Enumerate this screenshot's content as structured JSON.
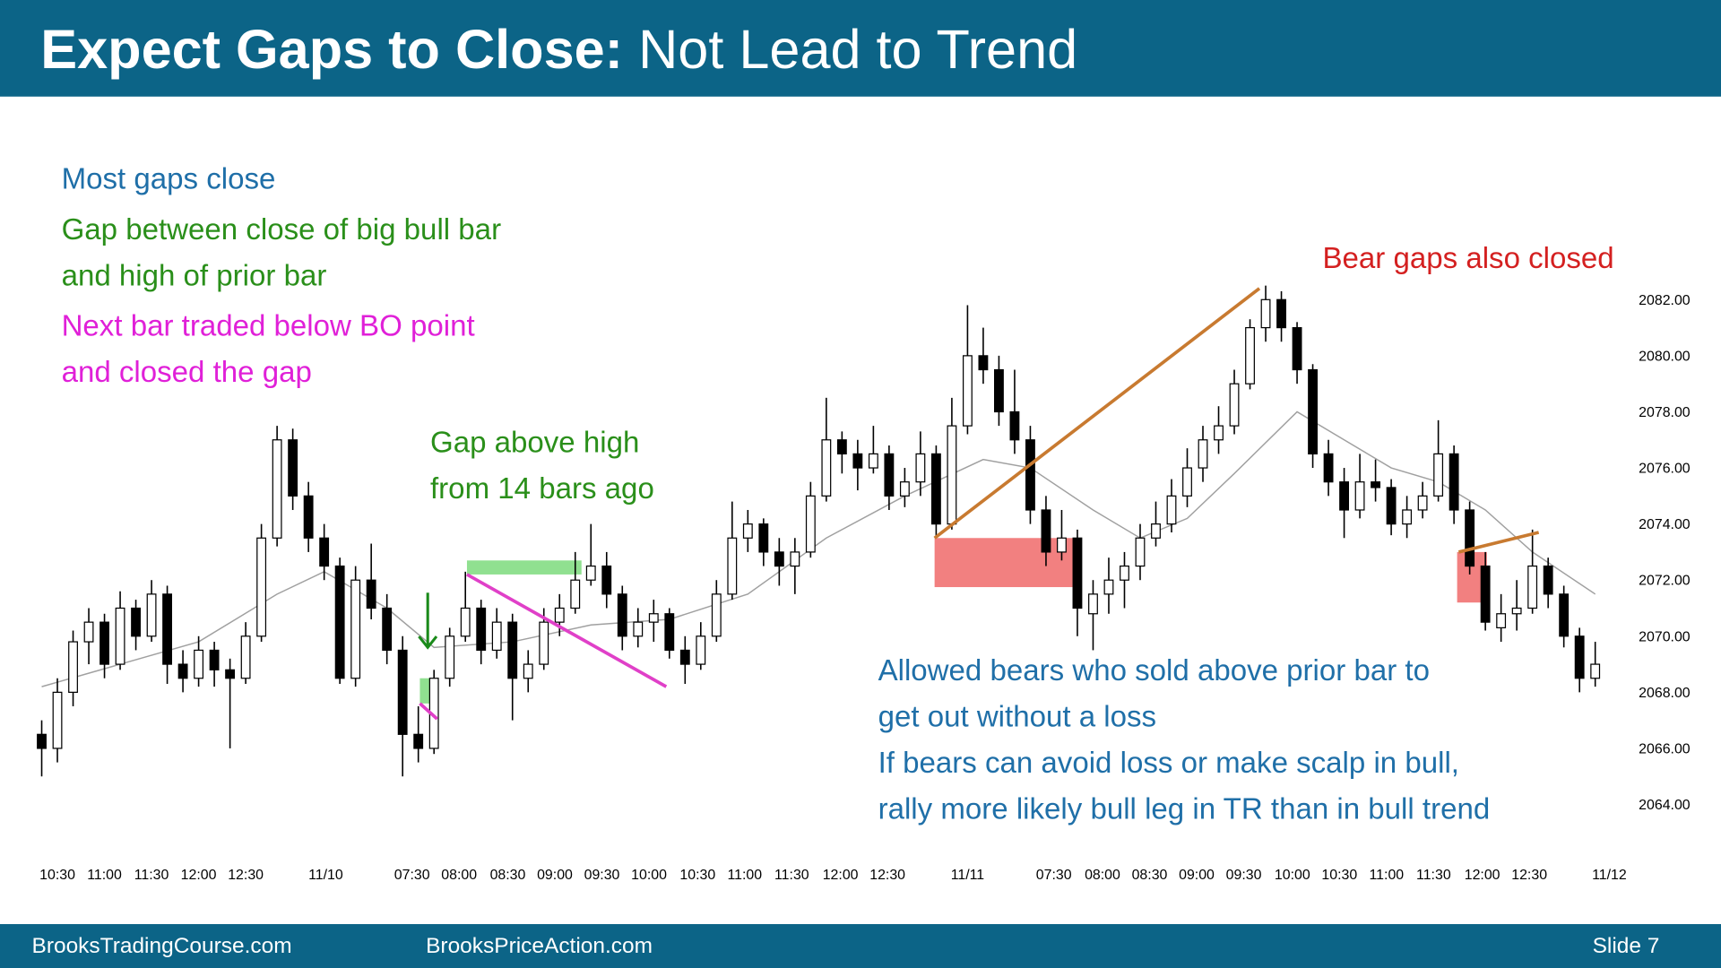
{
  "chart_data": {
    "type": "candlestick",
    "title": "Expect Gaps to Close:",
    "subtitle": "Not Lead to Trend",
    "xlim": [
      -1,
      101
    ],
    "ylim": [
      2062,
      2084
    ],
    "yticks": [
      {
        "value": 2064,
        "label": "2064.00"
      },
      {
        "value": 2066,
        "label": "2066.00"
      },
      {
        "value": 2068,
        "label": "2068.00"
      },
      {
        "value": 2070,
        "label": "2070.00"
      },
      {
        "value": 2072,
        "label": "2072.00"
      },
      {
        "value": 2074,
        "label": "2074.00"
      },
      {
        "value": 2076,
        "label": "2076.00"
      },
      {
        "value": 2078,
        "label": "2078.00"
      },
      {
        "value": 2080,
        "label": "2080.00"
      },
      {
        "value": 2082,
        "label": "2082.00"
      }
    ],
    "xticks": [
      {
        "value": 1,
        "label": "10:30"
      },
      {
        "value": 4,
        "label": "11:00"
      },
      {
        "value": 7,
        "label": "11:30"
      },
      {
        "value": 10,
        "label": "12:00"
      },
      {
        "value": 13,
        "label": "12:30"
      },
      {
        "value": 18.1,
        "label": "11/10"
      },
      {
        "value": 23.6,
        "label": "07:30"
      },
      {
        "value": 26.6,
        "label": "08:00"
      },
      {
        "value": 29.7,
        "label": "08:30"
      },
      {
        "value": 32.7,
        "label": "09:00"
      },
      {
        "value": 35.7,
        "label": "09:30"
      },
      {
        "value": 38.7,
        "label": "10:00"
      },
      {
        "value": 41.8,
        "label": "10:30"
      },
      {
        "value": 44.8,
        "label": "11:00"
      },
      {
        "value": 47.8,
        "label": "11:30"
      },
      {
        "value": 50.9,
        "label": "12:00"
      },
      {
        "value": 53.9,
        "label": "12:30"
      },
      {
        "value": 59,
        "label": "11/11"
      },
      {
        "value": 64.5,
        "label": "07:30"
      },
      {
        "value": 67.6,
        "label": "08:00"
      },
      {
        "value": 70.6,
        "label": "08:30"
      },
      {
        "value": 73.6,
        "label": "09:00"
      },
      {
        "value": 76.6,
        "label": "09:30"
      },
      {
        "value": 79.7,
        "label": "10:00"
      },
      {
        "value": 82.7,
        "label": "10:30"
      },
      {
        "value": 85.7,
        "label": "11:00"
      },
      {
        "value": 88.7,
        "label": "11:30"
      },
      {
        "value": 91.8,
        "label": "12:00"
      },
      {
        "value": 94.8,
        "label": "12:30"
      },
      {
        "value": 99.9,
        "label": "11/12"
      }
    ],
    "up_color": "#ffffff",
    "down_color": "#000000",
    "ohlc": [
      [
        2066.5,
        2067,
        2065,
        2066
      ],
      [
        2066,
        2068.5,
        2065.5,
        2068
      ],
      [
        2068,
        2070.2,
        2067.5,
        2069.8
      ],
      [
        2069.8,
        2071,
        2069,
        2070.5
      ],
      [
        2070.5,
        2070.8,
        2068.5,
        2069
      ],
      [
        2069,
        2071.6,
        2068.8,
        2071
      ],
      [
        2071,
        2071.3,
        2069.5,
        2070
      ],
      [
        2070,
        2072,
        2069.8,
        2071.5
      ],
      [
        2071.5,
        2071.8,
        2068.3,
        2069
      ],
      [
        2069,
        2069.5,
        2068,
        2068.5
      ],
      [
        2068.5,
        2070,
        2068.2,
        2069.5
      ],
      [
        2069.5,
        2069.8,
        2068.2,
        2068.8
      ],
      [
        2068.8,
        2069.2,
        2066,
        2068.5
      ],
      [
        2068.5,
        2070.5,
        2068.3,
        2070
      ],
      [
        2070,
        2074,
        2069.8,
        2073.5
      ],
      [
        2073.5,
        2077.5,
        2073.2,
        2077
      ],
      [
        2077,
        2077.4,
        2074.5,
        2075
      ],
      [
        2075,
        2075.5,
        2073,
        2073.5
      ],
      [
        2073.5,
        2074,
        2072,
        2072.5
      ],
      [
        2072.5,
        2072.8,
        2068.3,
        2068.5
      ],
      [
        2068.5,
        2072.5,
        2068.2,
        2072
      ],
      [
        2072,
        2073.3,
        2070.6,
        2071
      ],
      [
        2071,
        2071.5,
        2069,
        2069.5
      ],
      [
        2069.5,
        2070,
        2065,
        2066.5
      ],
      [
        2066.5,
        2067.5,
        2065.5,
        2066
      ],
      [
        2066,
        2068.8,
        2065.8,
        2068.5
      ],
      [
        2068.5,
        2070.3,
        2068.2,
        2070
      ],
      [
        2070,
        2072.3,
        2069.8,
        2071
      ],
      [
        2071,
        2071.3,
        2069,
        2069.5
      ],
      [
        2069.5,
        2071,
        2069.2,
        2070.5
      ],
      [
        2070.5,
        2070.8,
        2067,
        2068.5
      ],
      [
        2068.5,
        2069.5,
        2068,
        2069
      ],
      [
        2069,
        2071,
        2068.8,
        2070.5
      ],
      [
        2070.5,
        2071.5,
        2070,
        2071
      ],
      [
        2071,
        2073,
        2070.8,
        2072
      ],
      [
        2072,
        2074,
        2071.8,
        2072.5
      ],
      [
        2072.5,
        2073,
        2071,
        2071.5
      ],
      [
        2071.5,
        2071.8,
        2069.5,
        2070
      ],
      [
        2070,
        2071,
        2069.6,
        2070.5
      ],
      [
        2070.5,
        2071.3,
        2069.8,
        2070.8
      ],
      [
        2070.8,
        2071,
        2069.2,
        2069.5
      ],
      [
        2069.5,
        2070,
        2068.3,
        2069
      ],
      [
        2069,
        2070.5,
        2068.8,
        2070
      ],
      [
        2070,
        2072,
        2069.8,
        2071.5
      ],
      [
        2071.5,
        2074.8,
        2071.3,
        2073.5
      ],
      [
        2073.5,
        2074.5,
        2073,
        2074
      ],
      [
        2074,
        2074.2,
        2072.5,
        2073
      ],
      [
        2073,
        2073.5,
        2071.8,
        2072.5
      ],
      [
        2072.5,
        2073.5,
        2071.5,
        2073
      ],
      [
        2073,
        2075.5,
        2072.8,
        2075
      ],
      [
        2075,
        2078.5,
        2074.8,
        2077
      ],
      [
        2077,
        2077.3,
        2075.8,
        2076.5
      ],
      [
        2076.5,
        2077,
        2075.2,
        2076
      ],
      [
        2076,
        2077.5,
        2075.8,
        2076.5
      ],
      [
        2076.5,
        2076.8,
        2074.5,
        2075
      ],
      [
        2075,
        2076,
        2074.6,
        2075.5
      ],
      [
        2075.5,
        2077.3,
        2075,
        2076.5
      ],
      [
        2076.5,
        2076.8,
        2073.5,
        2074
      ],
      [
        2074,
        2078.5,
        2073.8,
        2077.5
      ],
      [
        2077.5,
        2081.8,
        2077.2,
        2080
      ],
      [
        2080,
        2081,
        2079,
        2079.5
      ],
      [
        2079.5,
        2080,
        2077.5,
        2078
      ],
      [
        2078,
        2079.5,
        2076.5,
        2077
      ],
      [
        2077,
        2077.5,
        2074,
        2074.5
      ],
      [
        2074.5,
        2075,
        2072.5,
        2073
      ],
      [
        2073,
        2074.5,
        2072.7,
        2073.5
      ],
      [
        2073.5,
        2073.8,
        2070,
        2071
      ],
      [
        2070.8,
        2072,
        2069.5,
        2071.5
      ],
      [
        2071.5,
        2072.8,
        2070.8,
        2072
      ],
      [
        2072,
        2073,
        2071,
        2072.5
      ],
      [
        2072.5,
        2074,
        2072,
        2073.5
      ],
      [
        2073.5,
        2074.8,
        2073.2,
        2074
      ],
      [
        2074,
        2075.6,
        2073.7,
        2075
      ],
      [
        2075,
        2076.7,
        2074.6,
        2076
      ],
      [
        2076,
        2077.5,
        2075.5,
        2077
      ],
      [
        2077,
        2078.2,
        2076.5,
        2077.5
      ],
      [
        2077.5,
        2079.5,
        2077.2,
        2079
      ],
      [
        2079,
        2081.3,
        2078.8,
        2081
      ],
      [
        2081,
        2082.5,
        2080.5,
        2082
      ],
      [
        2082,
        2082.3,
        2080.5,
        2081
      ],
      [
        2081,
        2081.2,
        2079,
        2079.5
      ],
      [
        2079.5,
        2079.7,
        2076,
        2076.5
      ],
      [
        2076.5,
        2077,
        2075,
        2075.5
      ],
      [
        2075.5,
        2076,
        2073.5,
        2074.5
      ],
      [
        2074.5,
        2076.5,
        2074.2,
        2075.5
      ],
      [
        2075.5,
        2076.3,
        2074.8,
        2075.3
      ],
      [
        2075.3,
        2075.6,
        2073.6,
        2074
      ],
      [
        2074,
        2075,
        2073.5,
        2074.5
      ],
      [
        2074.5,
        2075.5,
        2074.2,
        2075
      ],
      [
        2075,
        2077.7,
        2074.8,
        2076.5
      ],
      [
        2076.5,
        2076.8,
        2074,
        2074.5
      ],
      [
        2074.5,
        2074.8,
        2072.2,
        2072.5
      ],
      [
        2072.5,
        2073,
        2070.2,
        2070.5
      ],
      [
        2070.3,
        2071.5,
        2069.8,
        2070.8
      ],
      [
        2070.8,
        2072,
        2070.2,
        2071
      ],
      [
        2071,
        2073.8,
        2070.8,
        2072.5
      ],
      [
        2072.5,
        2072.8,
        2071,
        2071.5
      ],
      [
        2071.5,
        2071.8,
        2069.6,
        2070
      ],
      [
        2070,
        2070.3,
        2068,
        2068.5
      ],
      [
        2068.5,
        2069.8,
        2068.2,
        2069
      ]
    ],
    "moving_average": {
      "color": "#a0a0a0",
      "x": [
        0,
        5,
        10,
        15,
        18,
        22,
        25,
        30,
        35,
        40,
        45,
        50,
        55,
        60,
        63,
        67,
        70,
        73,
        76,
        80,
        83,
        86,
        89,
        92,
        95,
        99
      ],
      "values": [
        2068.2,
        2069,
        2069.8,
        2071.5,
        2072.3,
        2071,
        2069.6,
        2069.8,
        2070.4,
        2070.6,
        2071.5,
        2073.5,
        2075,
        2076.3,
        2076,
        2074.5,
        2073.5,
        2074.2,
        2075.8,
        2078,
        2077,
        2076,
        2075.5,
        2074.5,
        2073,
        2071.5
      ]
    },
    "highlights": [
      {
        "x": [
          27.1,
          34.4
        ],
        "y": [
          2072.2,
          2072.7
        ],
        "color": "#90e090"
      },
      {
        "x": [
          24.1,
          25
        ],
        "y": [
          2067.6,
          2068.5
        ],
        "color": "#90e090"
      },
      {
        "x": [
          56.9,
          65.7
        ],
        "y": [
          2071.75,
          2073.5
        ],
        "color": "#f28080"
      },
      {
        "x": [
          90.2,
          92.1
        ],
        "y": [
          2071.2,
          2073
        ],
        "color": "#f28080"
      }
    ],
    "trendlines": [
      {
        "x": [
          56.9,
          77.6
        ],
        "y": [
          2073.5,
          2082.4
        ],
        "color": "#c87a30"
      },
      {
        "x": [
          90.3,
          95.4
        ],
        "y": [
          2073,
          2073.7
        ],
        "color": "#c87a30"
      },
      {
        "x": [
          27.1,
          39.8
        ],
        "y": [
          2072.2,
          2068.2
        ],
        "color": "#e040c8"
      },
      {
        "x": [
          24.1,
          25.2
        ],
        "y": [
          2067.6,
          2067.05
        ],
        "color": "#e040c8"
      }
    ],
    "arrows": [
      {
        "x": [
          24.6,
          24.6
        ],
        "y": [
          2071.55,
          2069.6
        ],
        "color": "#1a8a1a"
      }
    ],
    "annotations": [
      {
        "lines": [
          "Most gaps close"
        ],
        "color": "#1f6fa8"
      },
      {
        "lines": [
          "Gap between close of big bull bar",
          "and high of prior bar"
        ],
        "color": "#2a8f1a"
      },
      {
        "lines": [
          "Next bar traded below BO point",
          "and closed the gap"
        ],
        "color": "#e020d8"
      },
      {
        "lines": [
          "Gap above high",
          "from 14 bars ago"
        ],
        "color": "#2a8f1a"
      },
      {
        "lines": [
          "Bear gaps also closed"
        ],
        "color": "#d42020"
      },
      {
        "lines": [
          "Allowed bears who sold above prior bar to",
          "get out without a loss",
          "If bears can avoid loss or make scalp in bull,",
          "rally more likely bull leg in TR than in bull trend"
        ],
        "color": "#1f6fa8"
      }
    ]
  },
  "footer": {
    "left": "BrooksTradingCourse.com",
    "center": "BrooksPriceAction.com",
    "right": "Slide 7"
  }
}
